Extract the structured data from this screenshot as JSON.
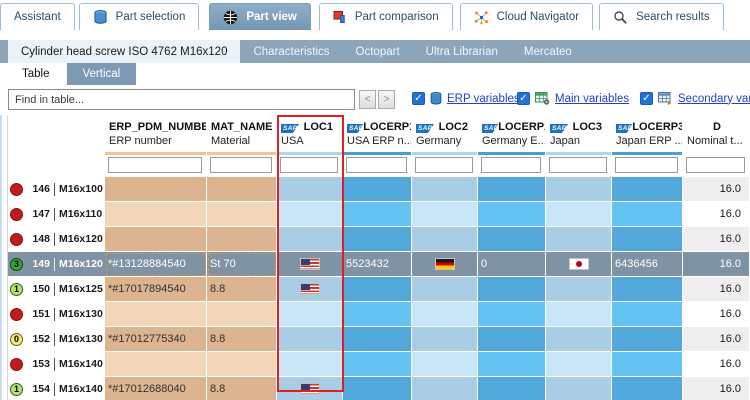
{
  "tabs": {
    "items": [
      {
        "label": "Assistant",
        "icon": "",
        "selected": false
      },
      {
        "label": "Part selection",
        "icon": "database",
        "selected": false
      },
      {
        "label": "Part view",
        "icon": "cube",
        "selected": true
      },
      {
        "label": "Part comparison",
        "icon": "part-compare",
        "selected": false
      },
      {
        "label": "Cloud Navigator",
        "icon": "network",
        "selected": false
      },
      {
        "label": "Search results",
        "icon": "magnifier",
        "selected": false
      }
    ]
  },
  "doc_tabs": {
    "items": [
      {
        "label": "Cylinder head screw ISO 4762 M16x120",
        "selected": true
      },
      {
        "label": "Characteristics",
        "selected": false
      },
      {
        "label": "Octopart",
        "selected": false
      },
      {
        "label": "Ultra Librarian",
        "selected": false
      },
      {
        "label": "Mercateo",
        "selected": false
      }
    ]
  },
  "view_tabs": {
    "items": [
      {
        "label": "Table",
        "selected": true
      },
      {
        "label": "Vertical",
        "selected": false
      }
    ]
  },
  "find_bar": {
    "placeholder": "Find in table...",
    "prev_label": "<",
    "next_label": ">",
    "check_glyph": "✓",
    "toggles": [
      {
        "label": "ERP variables",
        "icon": "database-icon",
        "checked": true
      },
      {
        "label": "Main variables",
        "icon": "main-variables-icon",
        "checked": true
      },
      {
        "label": "Secondary varia",
        "icon": "secondary-variables-icon",
        "checked": true
      }
    ]
  },
  "table": {
    "sap_label": "SAP",
    "columns": [
      {
        "key": "ERP_PDM_NUMBER",
        "desc": "ERP number",
        "sap": false,
        "group": "erp"
      },
      {
        "key": "MAT_NAME",
        "desc": "Material",
        "sap": false,
        "group": "erp"
      },
      {
        "key": "LOC1",
        "desc": "USA",
        "sap": true,
        "group": "loc"
      },
      {
        "key": "LOCERP1",
        "desc": "USA ERP n...",
        "sap": true,
        "group": "locerp"
      },
      {
        "key": "LOC2",
        "desc": "Germany",
        "sap": true,
        "group": "loc"
      },
      {
        "key": "LOCERP2",
        "desc": "Germany E...",
        "sap": true,
        "group": "locerp"
      },
      {
        "key": "LOC3",
        "desc": "Japan",
        "sap": true,
        "group": "loc"
      },
      {
        "key": "LOCERP3",
        "desc": "Japan ERP ...",
        "sap": true,
        "group": "locerp"
      },
      {
        "key": "D",
        "desc": "Nominal t...",
        "sap": false,
        "group": "d"
      }
    ],
    "highlight_column": "LOC1",
    "rows": [
      {
        "num": "146",
        "name": "M16x100",
        "status": {
          "shape": "red",
          "label": ""
        },
        "selected": false,
        "cells": [
          {
            "t": ""
          },
          {
            "t": ""
          },
          {},
          {
            "t": ""
          },
          {},
          {
            "t": ""
          },
          {},
          {
            "t": ""
          },
          {
            "t": "16.0"
          }
        ]
      },
      {
        "num": "147",
        "name": "M16x110",
        "status": {
          "shape": "red",
          "label": ""
        },
        "selected": false,
        "cells": [
          {
            "t": ""
          },
          {
            "t": ""
          },
          {},
          {
            "t": ""
          },
          {},
          {
            "t": ""
          },
          {},
          {
            "t": ""
          },
          {
            "t": "16.0"
          }
        ]
      },
      {
        "num": "148",
        "name": "M16x120",
        "status": {
          "shape": "red",
          "label": ""
        },
        "selected": false,
        "cells": [
          {
            "t": ""
          },
          {
            "t": ""
          },
          {},
          {
            "t": ""
          },
          {},
          {
            "t": ""
          },
          {},
          {
            "t": ""
          },
          {
            "t": "16.0"
          }
        ]
      },
      {
        "num": "149",
        "name": "M16x120",
        "status": {
          "shape": "green-filled",
          "label": "3"
        },
        "selected": true,
        "cells": [
          {
            "t": "*#13128884540"
          },
          {
            "t": "St 70"
          },
          {
            "f": "us"
          },
          {
            "t": "5523432"
          },
          {
            "f": "de"
          },
          {
            "t": "0"
          },
          {
            "f": "jp"
          },
          {
            "t": "6436456"
          },
          {
            "t": "16.0"
          }
        ]
      },
      {
        "num": "150",
        "name": "M16x125",
        "status": {
          "shape": "green-ring",
          "label": "1"
        },
        "selected": false,
        "cells": [
          {
            "t": "*#17017894540"
          },
          {
            "t": "8.8"
          },
          {
            "f": "us"
          },
          {
            "t": ""
          },
          {},
          {
            "t": ""
          },
          {},
          {
            "t": ""
          },
          {
            "t": "16.0"
          }
        ]
      },
      {
        "num": "151",
        "name": "M16x130",
        "status": {
          "shape": "red",
          "label": ""
        },
        "selected": false,
        "cells": [
          {
            "t": ""
          },
          {
            "t": ""
          },
          {},
          {
            "t": ""
          },
          {},
          {
            "t": ""
          },
          {},
          {
            "t": ""
          },
          {
            "t": "16.0"
          }
        ]
      },
      {
        "num": "152",
        "name": "M16x130",
        "status": {
          "shape": "yellow-ring",
          "label": "0"
        },
        "selected": false,
        "cells": [
          {
            "t": "*#17012775340"
          },
          {
            "t": "8.8"
          },
          {},
          {
            "t": ""
          },
          {},
          {
            "t": ""
          },
          {},
          {
            "t": ""
          },
          {
            "t": "16.0"
          }
        ]
      },
      {
        "num": "153",
        "name": "M16x140",
        "status": {
          "shape": "red",
          "label": ""
        },
        "selected": false,
        "cells": [
          {
            "t": ""
          },
          {
            "t": ""
          },
          {},
          {
            "t": ""
          },
          {},
          {
            "t": ""
          },
          {},
          {
            "t": ""
          },
          {
            "t": "16.0"
          }
        ]
      },
      {
        "num": "154",
        "name": "M16x140",
        "status": {
          "shape": "green-ring",
          "label": "1"
        },
        "selected": false,
        "cells": [
          {
            "t": "*#17012688040"
          },
          {
            "t": "8.8"
          },
          {
            "f": "us"
          },
          {
            "t": ""
          },
          {},
          {
            "t": ""
          },
          {},
          {
            "t": ""
          },
          {
            "t": "16.0"
          }
        ]
      }
    ]
  },
  "colors": {
    "sel": "#8093a4",
    "red_rect": "#e02020",
    "erp_dk": "#dcb48f",
    "erp_lt": "#f2d6b8",
    "loc_dk": "#a9cde5",
    "loc_lt": "#c9e6f6",
    "locerp_dk": "#52a8da",
    "locerp_lt": "#64c3f3",
    "d_dk": "#efefef",
    "d_lt": "#ffffff"
  }
}
